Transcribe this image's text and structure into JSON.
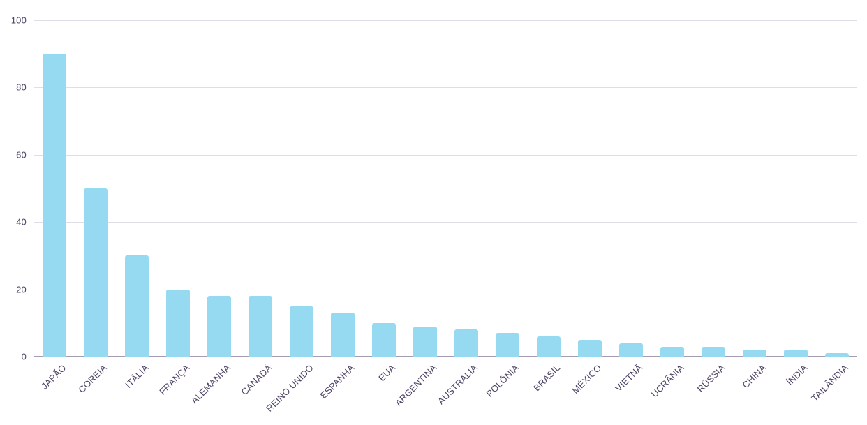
{
  "chart_data": {
    "type": "bar",
    "title": "",
    "xlabel": "",
    "ylabel": "",
    "categories": [
      "JAPÃO",
      "COREIA",
      "ITÁLIA",
      "FRANÇA",
      "ALEMANHA",
      "CANADÁ",
      "REINO UNIDO",
      "ESPANHA",
      "EUA",
      "ARGENTINA",
      "AUSTRALIA",
      "POLÔNIA",
      "BRASIL",
      "MÉXICO",
      "VIETNÃ",
      "UCRÂNIA",
      "RÚSSIA",
      "CHINA",
      "ÍNDIA",
      "TAILÂNDIA"
    ],
    "values": [
      90,
      50,
      30,
      20,
      18,
      18,
      15,
      13,
      10,
      9,
      8,
      7,
      6,
      5,
      4,
      3,
      3,
      2,
      2,
      1
    ],
    "ylim": [
      0,
      100
    ],
    "yticks": [
      0,
      20,
      40,
      60,
      80,
      100
    ],
    "grid": true,
    "legend": false,
    "colors": {
      "bar_fill": "#95DAF1",
      "grid_line": "#DEDEE6",
      "axis_line": "#A49DAF",
      "tick_text": "#4E4466",
      "background": "#FFFFFF"
    }
  }
}
